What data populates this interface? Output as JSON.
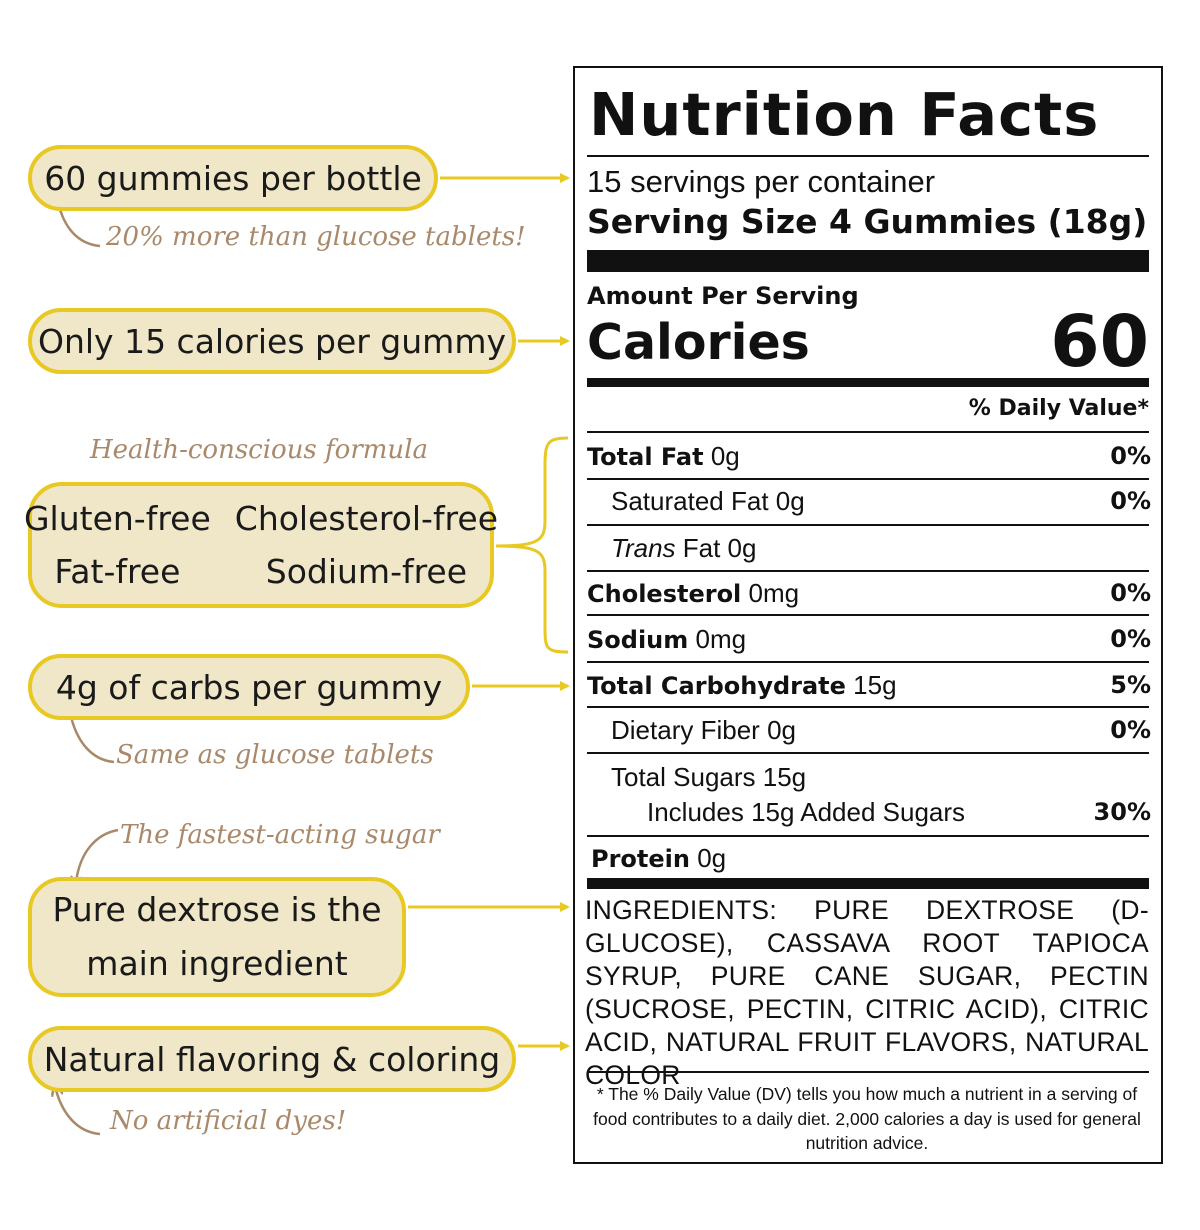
{
  "callouts": {
    "bottle": {
      "text": "60 gummies per bottle",
      "note": "20% more than glucose tablets!"
    },
    "calories": {
      "text": "Only 15 calories per gummy"
    },
    "health": {
      "heading": "Health-conscious formula",
      "items": [
        "Gluten-free",
        "Cholesterol-free",
        "Fat-free",
        "Sodium-free"
      ]
    },
    "carbs": {
      "text": "4g of carbs per gummy",
      "note": "Same as glucose tablets"
    },
    "dextrose": {
      "note": "The fastest-acting sugar",
      "line1": "Pure dextrose is the",
      "line2": "main ingredient"
    },
    "natural": {
      "text": "Natural flavoring & coloring",
      "note": "No artificial dyes!"
    }
  },
  "label": {
    "title": "Nutrition Facts",
    "servings": "15 servings per container",
    "serving_size": "Serving Size 4 Gummies (18g)",
    "amount_per_serving": "Amount Per Serving",
    "calories_label": "Calories",
    "calories_value": "60",
    "dv_header": "% Daily Value*",
    "rows": [
      {
        "name": "Total Fat",
        "amount": "0g",
        "dv": "0%"
      },
      {
        "name": "Saturated Fat",
        "amount": "0g",
        "dv": "0%"
      },
      {
        "name": "Trans",
        "amount": "Fat 0g",
        "dv": ""
      },
      {
        "name": "Cholesterol",
        "amount": "0mg",
        "dv": "0%"
      },
      {
        "name": "Sodium",
        "amount": "0mg",
        "dv": "0%"
      },
      {
        "name": "Total Carbohydrate",
        "amount": "15g",
        "dv": "5%"
      },
      {
        "name": "Dietary Fiber",
        "amount": "0g",
        "dv": "0%"
      },
      {
        "name": "Total Sugars",
        "amount": "15g",
        "dv": ""
      },
      {
        "name": "Includes 15g Added Sugars",
        "amount": "",
        "dv": "30%"
      },
      {
        "name": "Protein",
        "amount": "0g",
        "dv": ""
      }
    ],
    "ingredients": "INGREDIENTS:  PURE DEXTROSE (D-GLUCOSE), CASSAVA ROOT TAPIOCA SYRUP, PURE CANE SUGAR, PECTIN (SUCROSE, PECTIN, CITRIC ACID), CITRIC ACID, NATURAL FRUIT FLAVORS, NATURAL COLOR",
    "footnote": "* The % Daily Value (DV) tells you how much a nutrient in a serving of food contributes to a daily diet. 2,000 calories a day is used for general nutrition advice."
  },
  "colors": {
    "pill_fill": "#efe7c8",
    "pill_border": "#e8c823",
    "note": "#a9896a",
    "arrow": "#e8c823"
  }
}
